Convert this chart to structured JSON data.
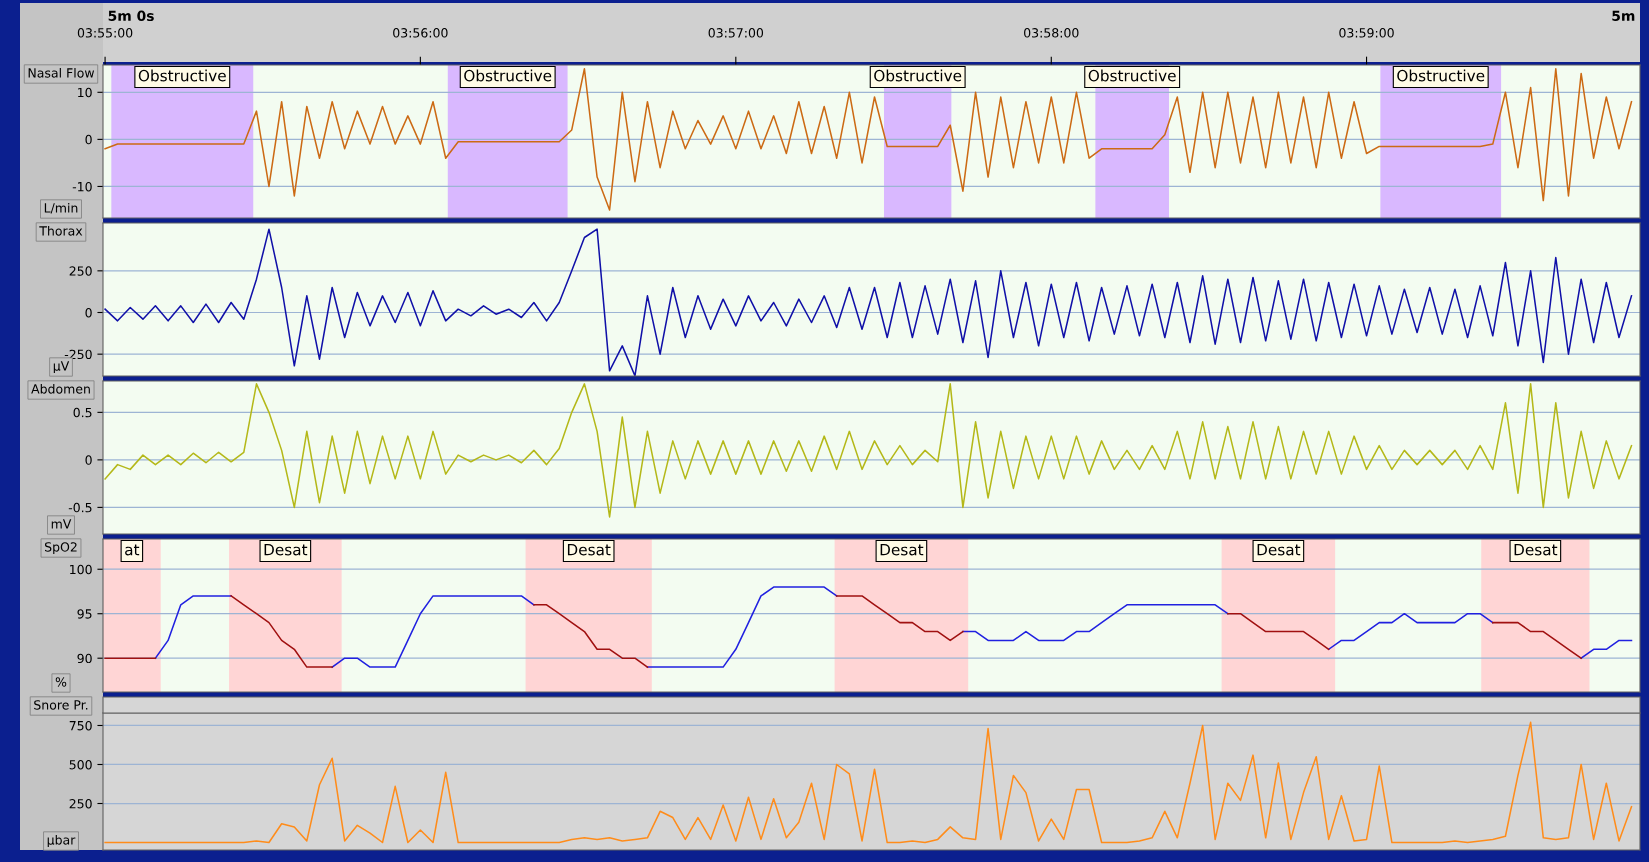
{
  "chart_data": [
    {
      "type": "line",
      "title": "Nasal Flow",
      "ylabel": "L/min",
      "annotations": [
        "5m 0s",
        "5m"
      ],
      "xlim": [
        3.91656,
        3.99778
      ],
      "ylim": [
        -16.7,
        15.8
      ],
      "yticks": [
        -10,
        0,
        10
      ],
      "xticks": [
        {
          "value": 3.91667,
          "label": "03:55:00"
        },
        {
          "value": 3.93333,
          "label": "03:56:00"
        },
        {
          "value": 3.95,
          "label": "03:57:00"
        },
        {
          "value": 3.96667,
          "label": "03:58:00"
        },
        {
          "value": 3.98333,
          "label": "03:59:00"
        }
      ],
      "grid": "y",
      "bands": [
        {
          "axis": "x",
          "from": 3.917,
          "to": 3.9245,
          "label": "Obstructive",
          "color": "#d9b8ff"
        },
        {
          "axis": "x",
          "from": 3.93478,
          "to": 3.94111,
          "label": "Obstructive",
          "color": "#d9b8ff"
        },
        {
          "axis": "x",
          "from": 3.95783,
          "to": 3.96139,
          "label": "Obstructive",
          "color": "#d9b8ff"
        },
        {
          "axis": "x",
          "from": 3.969,
          "to": 3.97289,
          "label": "Obstructive",
          "color": "#d9b8ff"
        },
        {
          "axis": "x",
          "from": 3.98406,
          "to": 3.99044,
          "label": "Obstructive",
          "color": "#d9b8ff"
        }
      ],
      "x": [
        3.91667,
        3.91733,
        3.918,
        3.91867,
        3.91933,
        3.92,
        3.92067,
        3.92133,
        3.922,
        3.92267,
        3.92333,
        3.924,
        3.92467,
        3.92533,
        3.926,
        3.92667,
        3.92733,
        3.928,
        3.92867,
        3.92933,
        3.93,
        3.93067,
        3.93133,
        3.932,
        3.93267,
        3.93333,
        3.934,
        3.93467,
        3.93533,
        3.936,
        3.93667,
        3.93733,
        3.938,
        3.93867,
        3.93933,
        3.94,
        3.94067,
        3.94133,
        3.942,
        3.94267,
        3.94333,
        3.944,
        3.94467,
        3.94533,
        3.946,
        3.94667,
        3.94733,
        3.948,
        3.94867,
        3.94933,
        3.95,
        3.95067,
        3.95133,
        3.952,
        3.95267,
        3.95333,
        3.954,
        3.95467,
        3.95533,
        3.956,
        3.95667,
        3.95733,
        3.958,
        3.95867,
        3.95933,
        3.96,
        3.96067,
        3.96133,
        3.962,
        3.96267,
        3.96333,
        3.964,
        3.96467,
        3.96533,
        3.966,
        3.96667,
        3.96733,
        3.968,
        3.96867,
        3.96933,
        3.97,
        3.97067,
        3.97133,
        3.972,
        3.97267,
        3.97333,
        3.974,
        3.97467,
        3.97533,
        3.976,
        3.97667,
        3.97733,
        3.978,
        3.97867,
        3.97933,
        3.98,
        3.98067,
        3.98133,
        3.982,
        3.98267,
        3.98333,
        3.984,
        3.98467,
        3.98533,
        3.986,
        3.98667,
        3.98733,
        3.988,
        3.98867,
        3.98933,
        3.99,
        3.99067,
        3.99133,
        3.992,
        3.99267,
        3.99333,
        3.994,
        3.99467,
        3.99533,
        3.996,
        3.99667,
        3.99733
      ],
      "series": [
        {
          "color": "#cc6a14",
          "values": [
            -2,
            -1,
            -1,
            -1,
            -1,
            -1,
            -1,
            -1,
            -1,
            -1,
            -1,
            -1,
            6,
            -10,
            8,
            -12,
            7,
            -4,
            8,
            -2,
            6,
            -1,
            7,
            -1,
            5,
            -1,
            8,
            -4,
            -0.5,
            -0.5,
            -0.5,
            -0.5,
            -0.5,
            -0.5,
            -0.5,
            -0.5,
            -0.5,
            2,
            15,
            -8,
            -15,
            10,
            -9,
            8,
            -6,
            6,
            -2,
            4,
            -1,
            5,
            -2,
            6,
            -2,
            5,
            -3,
            8,
            -3,
            7,
            -4,
            10,
            -5,
            9,
            -1.5,
            -1.5,
            -1.5,
            -1.5,
            -1.5,
            3,
            -11,
            10,
            -8,
            9,
            -6,
            8,
            -5,
            9,
            -5,
            10,
            -4,
            -2,
            -2,
            -2,
            -2,
            -2,
            1,
            9,
            -7,
            10,
            -6,
            10,
            -5,
            9,
            -6,
            10,
            -5,
            9,
            -6,
            10,
            -4,
            8,
            -3,
            -1.5,
            -1.5,
            -1.5,
            -1.5,
            -1.5,
            -1.5,
            -1.5,
            -1.5,
            -1.5,
            -1,
            10,
            -6,
            11,
            -13,
            15,
            -12,
            14,
            -4,
            9,
            -2,
            8
          ]
        }
      ]
    },
    {
      "type": "line",
      "title": "Thorax",
      "ylabel": "µV",
      "tick_labels": "y",
      "xlim": [
        3.91656,
        3.99778
      ],
      "ylim": [
        -381,
        537
      ],
      "yticks": [
        -250,
        0,
        250
      ],
      "grid": "y",
      "x": [
        3.91667,
        3.91733,
        3.918,
        3.91867,
        3.91933,
        3.92,
        3.92067,
        3.92133,
        3.922,
        3.92267,
        3.92333,
        3.924,
        3.92467,
        3.92533,
        3.926,
        3.92667,
        3.92733,
        3.928,
        3.92867,
        3.92933,
        3.93,
        3.93067,
        3.93133,
        3.932,
        3.93267,
        3.93333,
        3.934,
        3.93467,
        3.93533,
        3.936,
        3.93667,
        3.93733,
        3.938,
        3.93867,
        3.93933,
        3.94,
        3.94067,
        3.94133,
        3.942,
        3.94267,
        3.94333,
        3.944,
        3.94467,
        3.94533,
        3.946,
        3.94667,
        3.94733,
        3.948,
        3.94867,
        3.94933,
        3.95,
        3.95067,
        3.95133,
        3.952,
        3.95267,
        3.95333,
        3.954,
        3.95467,
        3.95533,
        3.956,
        3.95667,
        3.95733,
        3.958,
        3.95867,
        3.95933,
        3.96,
        3.96067,
        3.96133,
        3.962,
        3.96267,
        3.96333,
        3.964,
        3.96467,
        3.96533,
        3.966,
        3.96667,
        3.96733,
        3.968,
        3.96867,
        3.96933,
        3.97,
        3.97067,
        3.97133,
        3.972,
        3.97267,
        3.97333,
        3.974,
        3.97467,
        3.97533,
        3.976,
        3.97667,
        3.97733,
        3.978,
        3.97867,
        3.97933,
        3.98,
        3.98067,
        3.98133,
        3.982,
        3.98267,
        3.98333,
        3.984,
        3.98467,
        3.98533,
        3.986,
        3.98667,
        3.98733,
        3.988,
        3.98867,
        3.98933,
        3.99,
        3.99067,
        3.99133,
        3.992,
        3.99267,
        3.99333,
        3.994,
        3.99467,
        3.99533,
        3.996,
        3.99667,
        3.99733
      ],
      "series": [
        {
          "color": "#1010a8",
          "values": [
            20,
            -50,
            30,
            -40,
            40,
            -50,
            40,
            -60,
            50,
            -60,
            60,
            -40,
            200,
            500,
            150,
            -320,
            100,
            -280,
            150,
            -150,
            120,
            -80,
            100,
            -60,
            120,
            -80,
            130,
            -50,
            20,
            -20,
            40,
            -10,
            20,
            -30,
            60,
            -50,
            60,
            250,
            450,
            500,
            -350,
            -200,
            -380,
            100,
            -250,
            150,
            -150,
            100,
            -100,
            80,
            -80,
            100,
            -50,
            60,
            -80,
            80,
            -60,
            100,
            -90,
            150,
            -100,
            150,
            -150,
            180,
            -150,
            160,
            -130,
            200,
            -180,
            190,
            -270,
            250,
            -150,
            180,
            -200,
            170,
            -150,
            180,
            -170,
            150,
            -130,
            160,
            -140,
            170,
            -150,
            180,
            -180,
            220,
            -190,
            200,
            -180,
            210,
            -170,
            190,
            -160,
            200,
            -170,
            180,
            -150,
            170,
            -140,
            160,
            -130,
            140,
            -120,
            150,
            -130,
            140,
            -150,
            160,
            -140,
            300,
            -200,
            250,
            -300,
            330,
            -250,
            200,
            -180,
            180,
            -150,
            100
          ]
        }
      ]
    },
    {
      "type": "line",
      "title": "Abdomen",
      "ylabel": "mV",
      "tick_labels": "y",
      "xlim": [
        3.91656,
        3.99778
      ],
      "ylim": [
        -0.78,
        0.83
      ],
      "yticks": [
        -0.5,
        0,
        0.5
      ],
      "grid": "y",
      "x": [
        3.91667,
        3.91733,
        3.918,
        3.91867,
        3.91933,
        3.92,
        3.92067,
        3.92133,
        3.922,
        3.92267,
        3.92333,
        3.924,
        3.92467,
        3.92533,
        3.926,
        3.92667,
        3.92733,
        3.928,
        3.92867,
        3.92933,
        3.93,
        3.93067,
        3.93133,
        3.932,
        3.93267,
        3.93333,
        3.934,
        3.93467,
        3.93533,
        3.936,
        3.93667,
        3.93733,
        3.938,
        3.93867,
        3.93933,
        3.94,
        3.94067,
        3.94133,
        3.942,
        3.94267,
        3.94333,
        3.944,
        3.94467,
        3.94533,
        3.946,
        3.94667,
        3.94733,
        3.948,
        3.94867,
        3.94933,
        3.95,
        3.95067,
        3.95133,
        3.952,
        3.95267,
        3.95333,
        3.954,
        3.95467,
        3.95533,
        3.956,
        3.95667,
        3.95733,
        3.958,
        3.95867,
        3.95933,
        3.96,
        3.96067,
        3.96133,
        3.962,
        3.96267,
        3.96333,
        3.964,
        3.96467,
        3.96533,
        3.966,
        3.96667,
        3.96733,
        3.968,
        3.96867,
        3.96933,
        3.97,
        3.97067,
        3.97133,
        3.972,
        3.97267,
        3.97333,
        3.974,
        3.97467,
        3.97533,
        3.976,
        3.97667,
        3.97733,
        3.978,
        3.97867,
        3.97933,
        3.98,
        3.98067,
        3.98133,
        3.982,
        3.98267,
        3.98333,
        3.984,
        3.98467,
        3.98533,
        3.986,
        3.98667,
        3.98733,
        3.988,
        3.98867,
        3.98933,
        3.99,
        3.99067,
        3.99133,
        3.992,
        3.99267,
        3.99333,
        3.994,
        3.99467,
        3.99533,
        3.996,
        3.99667,
        3.99733
      ],
      "series": [
        {
          "color": "#b4b818",
          "values": [
            -0.2,
            -0.05,
            -0.1,
            0.05,
            -0.05,
            0.05,
            -0.05,
            0.07,
            -0.03,
            0.08,
            -0.02,
            0.08,
            0.8,
            0.5,
            0.1,
            -0.5,
            0.3,
            -0.45,
            0.25,
            -0.35,
            0.3,
            -0.25,
            0.25,
            -0.2,
            0.25,
            -0.2,
            0.3,
            -0.15,
            0.05,
            -0.02,
            0.05,
            0,
            0.05,
            -0.03,
            0.1,
            -0.05,
            0.12,
            0.5,
            0.8,
            0.3,
            -0.6,
            0.45,
            -0.5,
            0.3,
            -0.35,
            0.2,
            -0.2,
            0.2,
            -0.15,
            0.2,
            -0.15,
            0.2,
            -0.15,
            0.2,
            -0.12,
            0.2,
            -0.12,
            0.25,
            -0.1,
            0.3,
            -0.1,
            0.2,
            -0.05,
            0.15,
            -0.05,
            0.1,
            -0.02,
            0.8,
            -0.5,
            0.4,
            -0.4,
            0.3,
            -0.3,
            0.25,
            -0.2,
            0.25,
            -0.2,
            0.25,
            -0.15,
            0.2,
            -0.1,
            0.1,
            -0.1,
            0.15,
            -0.1,
            0.3,
            -0.2,
            0.4,
            -0.2,
            0.35,
            -0.2,
            0.4,
            -0.2,
            0.35,
            -0.2,
            0.3,
            -0.15,
            0.3,
            -0.15,
            0.25,
            -0.1,
            0.15,
            -0.1,
            0.1,
            -0.05,
            0.1,
            -0.05,
            0.1,
            -0.1,
            0.15,
            -0.1,
            0.6,
            -0.35,
            0.8,
            -0.5,
            0.6,
            -0.4,
            0.3,
            -0.3,
            0.2,
            -0.2,
            0.15
          ]
        }
      ]
    },
    {
      "type": "line",
      "title": "SpO2",
      "ylabel": "%",
      "tick_labels": "y",
      "xlim": [
        3.91656,
        3.99778
      ],
      "ylim": [
        86.2,
        103.4
      ],
      "yticks": [
        90,
        95,
        100
      ],
      "grid": "y",
      "bands": [
        {
          "axis": "x",
          "from": 3.91656,
          "to": 3.91961,
          "label": "at",
          "color": "#ffd5d5"
        },
        {
          "axis": "x",
          "from": 3.92322,
          "to": 3.92917,
          "label": "Desat",
          "color": "#ffd5d5"
        },
        {
          "axis": "x",
          "from": 3.93889,
          "to": 3.94556,
          "label": "Desat",
          "color": "#ffd5d5"
        },
        {
          "axis": "x",
          "from": 3.95522,
          "to": 3.96228,
          "label": "Desat",
          "color": "#ffd5d5"
        },
        {
          "axis": "x",
          "from": 3.97567,
          "to": 3.98167,
          "label": "Desat",
          "color": "#ffd5d5"
        },
        {
          "axis": "x",
          "from": 3.98939,
          "to": 3.99511,
          "label": "Desat",
          "color": "#ffd5d5"
        }
      ],
      "x": [
        3.91667,
        3.91733,
        3.918,
        3.91867,
        3.91933,
        3.92,
        3.92067,
        3.92133,
        3.922,
        3.92267,
        3.92333,
        3.924,
        3.92467,
        3.92533,
        3.926,
        3.92667,
        3.92733,
        3.928,
        3.92867,
        3.92933,
        3.93,
        3.93067,
        3.93133,
        3.932,
        3.93267,
        3.93333,
        3.934,
        3.93467,
        3.93533,
        3.936,
        3.93667,
        3.93733,
        3.938,
        3.93867,
        3.93933,
        3.94,
        3.94067,
        3.94133,
        3.942,
        3.94267,
        3.94333,
        3.944,
        3.94467,
        3.94533,
        3.946,
        3.94667,
        3.94733,
        3.948,
        3.94867,
        3.94933,
        3.95,
        3.95067,
        3.95133,
        3.952,
        3.95267,
        3.95333,
        3.954,
        3.95467,
        3.95533,
        3.956,
        3.95667,
        3.95733,
        3.958,
        3.95867,
        3.95933,
        3.96,
        3.96067,
        3.96133,
        3.962,
        3.96267,
        3.96333,
        3.964,
        3.96467,
        3.96533,
        3.966,
        3.96667,
        3.96733,
        3.968,
        3.96867,
        3.96933,
        3.97,
        3.97067,
        3.97133,
        3.972,
        3.97267,
        3.97333,
        3.974,
        3.97467,
        3.97533,
        3.976,
        3.97667,
        3.97733,
        3.978,
        3.97867,
        3.97933,
        3.98,
        3.98067,
        3.98133,
        3.982,
        3.98267,
        3.98333,
        3.984,
        3.98467,
        3.98533,
        3.986,
        3.98667,
        3.98733,
        3.988,
        3.98867,
        3.98933,
        3.99,
        3.99067,
        3.99133,
        3.992,
        3.99267,
        3.99333,
        3.994,
        3.99467,
        3.99533,
        3.996,
        3.99667,
        3.99733
      ],
      "series": [
        {
          "color": "#2020e0",
          "values": [
            null,
            null,
            null,
            null,
            90,
            92,
            96,
            97,
            97,
            97,
            97,
            null,
            null,
            null,
            null,
            null,
            null,
            null,
            89,
            90,
            90,
            89,
            89,
            89,
            92,
            95,
            97,
            97,
            97,
            97,
            97,
            97,
            97,
            97,
            96,
            null,
            null,
            null,
            null,
            null,
            null,
            null,
            null,
            89,
            89,
            89,
            89,
            89,
            89,
            89,
            91,
            94,
            97,
            98,
            98,
            98,
            98,
            98,
            97,
            null,
            null,
            null,
            null,
            null,
            null,
            null,
            null,
            null,
            93,
            93,
            92,
            92,
            92,
            93,
            92,
            92,
            92,
            93,
            93,
            94,
            95,
            96,
            96,
            96,
            96,
            96,
            96,
            96,
            96,
            95,
            null,
            null,
            null,
            null,
            null,
            null,
            null,
            91,
            92,
            92,
            93,
            94,
            94,
            95,
            94,
            94,
            94,
            94,
            95,
            95,
            94,
            null,
            null,
            null,
            null,
            null,
            null,
            90,
            91,
            91,
            92,
            92
          ]
        },
        {
          "color": "#a01010",
          "values": [
            90,
            90,
            90,
            90,
            90,
            null,
            null,
            null,
            null,
            null,
            97,
            96,
            95,
            94,
            92,
            91,
            89,
            89,
            89,
            null,
            null,
            null,
            null,
            null,
            null,
            null,
            null,
            null,
            null,
            null,
            null,
            null,
            null,
            null,
            96,
            96,
            95,
            94,
            93,
            91,
            91,
            90,
            90,
            89,
            null,
            null,
            null,
            null,
            null,
            null,
            null,
            null,
            null,
            null,
            null,
            null,
            null,
            null,
            97,
            97,
            97,
            96,
            95,
            94,
            94,
            93,
            93,
            92,
            93,
            null,
            null,
            null,
            null,
            null,
            null,
            null,
            null,
            null,
            null,
            null,
            null,
            null,
            null,
            null,
            null,
            null,
            null,
            null,
            null,
            95,
            95,
            94,
            93,
            93,
            93,
            93,
            92,
            91,
            null,
            null,
            null,
            null,
            null,
            null,
            null,
            null,
            null,
            null,
            null,
            null,
            94,
            94,
            94,
            93,
            93,
            92,
            91,
            90,
            null,
            null,
            null,
            null
          ]
        }
      ]
    },
    {
      "type": "line",
      "title": "Snore Pr.",
      "ylabel": "µbar",
      "tick_labels": "y",
      "xlim": [
        3.91656,
        3.99778
      ],
      "ylim": [
        -48,
        830
      ],
      "yticks": [
        250,
        500,
        750
      ],
      "grid": "y",
      "x": [
        3.91667,
        3.91733,
        3.918,
        3.91867,
        3.91933,
        3.92,
        3.92067,
        3.92133,
        3.922,
        3.92267,
        3.92333,
        3.924,
        3.92467,
        3.92533,
        3.926,
        3.92667,
        3.92733,
        3.928,
        3.92867,
        3.92933,
        3.93,
        3.93067,
        3.93133,
        3.932,
        3.93267,
        3.93333,
        3.934,
        3.93467,
        3.93533,
        3.936,
        3.93667,
        3.93733,
        3.938,
        3.93867,
        3.93933,
        3.94,
        3.94067,
        3.94133,
        3.942,
        3.94267,
        3.94333,
        3.944,
        3.94467,
        3.94533,
        3.946,
        3.94667,
        3.94733,
        3.948,
        3.94867,
        3.94933,
        3.95,
        3.95067,
        3.95133,
        3.952,
        3.95267,
        3.95333,
        3.954,
        3.95467,
        3.95533,
        3.956,
        3.95667,
        3.95733,
        3.958,
        3.95867,
        3.95933,
        3.96,
        3.96067,
        3.96133,
        3.962,
        3.96267,
        3.96333,
        3.964,
        3.96467,
        3.96533,
        3.966,
        3.96667,
        3.96733,
        3.968,
        3.96867,
        3.96933,
        3.97,
        3.97067,
        3.97133,
        3.972,
        3.97267,
        3.97333,
        3.974,
        3.97467,
        3.97533,
        3.976,
        3.97667,
        3.97733,
        3.978,
        3.97867,
        3.97933,
        3.98,
        3.98067,
        3.98133,
        3.982,
        3.98267,
        3.98333,
        3.984,
        3.98467,
        3.98533,
        3.986,
        3.98667,
        3.98733,
        3.988,
        3.98867,
        3.98933,
        3.99,
        3.99067,
        3.99133,
        3.992,
        3.99267,
        3.99333,
        3.994,
        3.99467,
        3.99533,
        3.996,
        3.99667,
        3.99733
      ],
      "series": [
        {
          "color": "#ff8c1a",
          "values": [
            0,
            0,
            0,
            0,
            0,
            0,
            0,
            0,
            0,
            0,
            0,
            0,
            10,
            0,
            120,
            100,
            10,
            370,
            540,
            10,
            110,
            60,
            0,
            360,
            0,
            80,
            0,
            450,
            0,
            0,
            0,
            0,
            0,
            0,
            0,
            0,
            0,
            20,
            30,
            20,
            30,
            10,
            20,
            30,
            200,
            160,
            20,
            160,
            20,
            240,
            10,
            290,
            20,
            280,
            30,
            130,
            380,
            20,
            500,
            440,
            10,
            470,
            0,
            0,
            10,
            0,
            20,
            100,
            30,
            20,
            730,
            20,
            430,
            320,
            10,
            150,
            20,
            340,
            340,
            0,
            0,
            0,
            10,
            30,
            200,
            30,
            380,
            750,
            20,
            380,
            270,
            560,
            30,
            510,
            20,
            320,
            550,
            20,
            300,
            10,
            20,
            490,
            0,
            0,
            0,
            0,
            0,
            10,
            0,
            10,
            20,
            40,
            430,
            770,
            30,
            20,
            30,
            500,
            20,
            380,
            10,
            230
          ]
        }
      ]
    }
  ]
}
